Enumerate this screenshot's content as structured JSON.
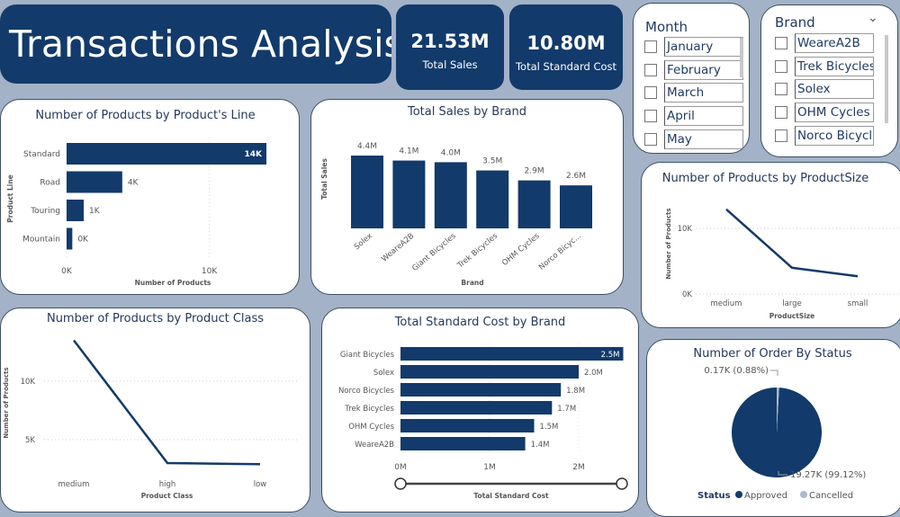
{
  "header": {
    "title": "Transactions Analysis"
  },
  "kpis": [
    {
      "value": "21.53M",
      "label": "Total Sales"
    },
    {
      "value": "10.80M",
      "label": "Total Standard Cost"
    }
  ],
  "month_slicer": {
    "title": "Month",
    "items": [
      "January",
      "February",
      "March",
      "April",
      "May"
    ]
  },
  "brand_slicer": {
    "title": "Brand",
    "items": [
      "WeareA2B",
      "Trek Bicycles",
      "Solex",
      "OHM Cycles",
      "Norco Bicycles"
    ]
  },
  "colors": {
    "navy": "#123a6b",
    "bar": "#123a6b",
    "cancelled": "#a9b8cc",
    "background": "#a3b2c6"
  },
  "chart_data": [
    {
      "id": "product_line",
      "type": "bar",
      "orientation": "horizontal",
      "title": "Number of Products by Product's Line",
      "xlabel": "Number of Products",
      "ylabel": "Product Line",
      "categories": [
        "Standard",
        "Road",
        "Touring",
        "Mountain"
      ],
      "values": [
        14000,
        3900,
        1200,
        400
      ],
      "data_labels": [
        "14K",
        "4K",
        "1K",
        "0K"
      ],
      "ticks": [
        "0K",
        "10K"
      ],
      "xlim": [
        0,
        14500
      ]
    },
    {
      "id": "sales_brand",
      "type": "bar",
      "title": "Total Sales by Brand",
      "xlabel": "Brand",
      "ylabel": "Total Sales",
      "categories": [
        "Solex",
        "WeareA2B",
        "Giant Bicycles",
        "Trek Bicycles",
        "OHM Cycles",
        "Norco Bicyc..."
      ],
      "values": [
        4.4,
        4.1,
        4.0,
        3.5,
        2.9,
        2.6
      ],
      "data_labels": [
        "4.4M",
        "4.1M",
        "4.0M",
        "3.5M",
        "2.9M",
        "2.6M"
      ],
      "unit": "M"
    },
    {
      "id": "product_size",
      "type": "line",
      "title": "Number of Products by ProductSize",
      "xlabel": "ProductSize",
      "ylabel": "Number of Products",
      "categories": [
        "medium",
        "large",
        "small"
      ],
      "values": [
        12900,
        4000,
        2700
      ],
      "ticks": [
        "0K",
        "10K"
      ],
      "ylim": [
        0,
        10000
      ]
    },
    {
      "id": "product_class",
      "type": "line",
      "title": "Number of Products by Product Class",
      "xlabel": "Product Class",
      "ylabel": "Number of Products",
      "categories": [
        "medium",
        "high",
        "low"
      ],
      "values": [
        13500,
        3000,
        2900
      ],
      "ticks": [
        "5K",
        "10K"
      ]
    },
    {
      "id": "std_cost_brand",
      "type": "bar",
      "orientation": "horizontal",
      "title": "Total Standard Cost by Brand",
      "xlabel": "Total Standard Cost",
      "categories": [
        "Giant Bicycles",
        "Solex",
        "Norco Bicycles",
        "Trek Bicycles",
        "OHM Cycles",
        "WeareA2B"
      ],
      "values": [
        2.5,
        2.0,
        1.8,
        1.7,
        1.5,
        1.4
      ],
      "data_labels": [
        "2.5M",
        "2.0M",
        "1.8M",
        "1.7M",
        "1.5M",
        "1.4M"
      ],
      "ticks": [
        "0M",
        "1M",
        "2M"
      ],
      "unit": "M"
    },
    {
      "id": "order_status",
      "type": "pie",
      "title": "Number of Order By Status",
      "legend_title": "Status",
      "slices": [
        {
          "name": "Approved",
          "value": 19270,
          "label": "19.27K (99.12%)"
        },
        {
          "name": "Cancelled",
          "value": 170,
          "label": "0.17K (0.88%)"
        }
      ]
    }
  ]
}
